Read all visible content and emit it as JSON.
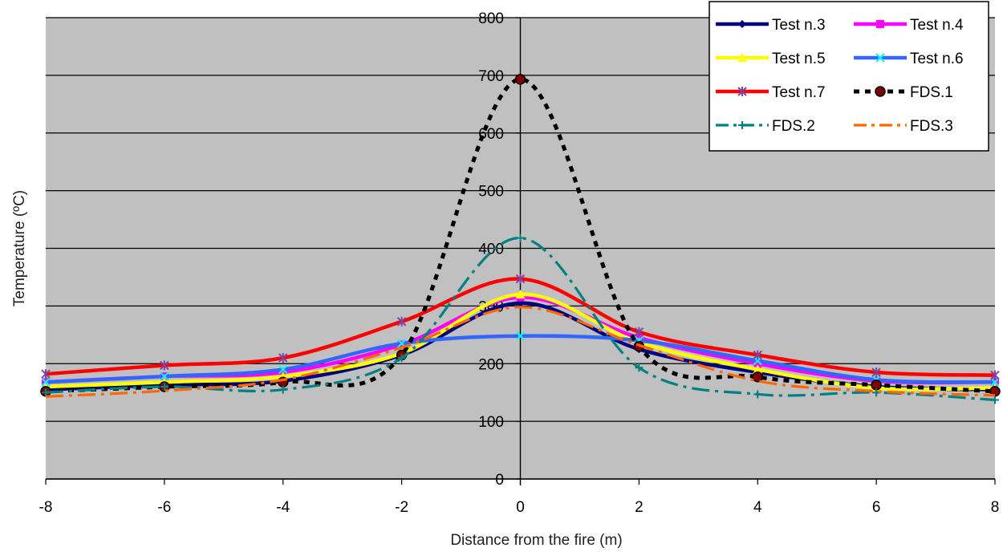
{
  "chart_data": {
    "type": "line",
    "title": "",
    "xlabel": "Distance from the fire (m)",
    "ylabel": "Temperature (ºC)",
    "xlim": [
      -8,
      8
    ],
    "ylim": [
      0,
      800
    ],
    "xticks": [
      "-8",
      "-6",
      "-4",
      "-2",
      "0",
      "2",
      "4",
      "6",
      "8"
    ],
    "yticks": [
      "0",
      "100",
      "200",
      "300",
      "400",
      "500",
      "600",
      "700",
      "800"
    ],
    "grid": "horizontal",
    "legend_position": "top-right",
    "plot_background": "#c0c0c0",
    "x": [
      -8,
      -6,
      -4,
      -2,
      0,
      2,
      4,
      6,
      8
    ],
    "series": [
      {
        "name": "Test n.3",
        "color": "#000080",
        "dash": "solid",
        "marker": "diamond",
        "values": [
          155,
          163,
          170,
          215,
          305,
          225,
          185,
          160,
          155
        ]
      },
      {
        "name": "Test n.4",
        "color": "#ff00ff",
        "dash": "solid",
        "marker": "square",
        "values": [
          168,
          178,
          185,
          233,
          315,
          245,
          200,
          170,
          168
        ]
      },
      {
        "name": "Test n.5",
        "color": "#ffff00",
        "dash": "solid",
        "marker": "triangle",
        "values": [
          160,
          168,
          178,
          218,
          320,
          237,
          190,
          158,
          158
        ]
      },
      {
        "name": "Test n.6",
        "color": "#3366ff",
        "dash": "solid",
        "marker": "x",
        "values": [
          168,
          178,
          190,
          235,
          248,
          240,
          205,
          172,
          168
        ]
      },
      {
        "name": "Test n.7",
        "color": "#ff0000",
        "dash": "solid",
        "marker": "star",
        "values": [
          182,
          197,
          210,
          273,
          347,
          255,
          215,
          185,
          180
        ]
      },
      {
        "name": "FDS.1",
        "color": "#000000",
        "dash": "dot",
        "marker": "circle",
        "values": [
          152,
          160,
          168,
          215,
          693,
          230,
          177,
          163,
          152
        ]
      },
      {
        "name": "FDS.2",
        "color": "#008080",
        "dash": "dashdot",
        "marker": "plus",
        "values": [
          150,
          160,
          155,
          210,
          418,
          193,
          147,
          150,
          137
        ]
      },
      {
        "name": "FDS.3",
        "color": "#ff6600",
        "dash": "dashdot",
        "marker": "none",
        "values": [
          143,
          153,
          172,
          228,
          298,
          232,
          170,
          152,
          145
        ]
      }
    ]
  }
}
